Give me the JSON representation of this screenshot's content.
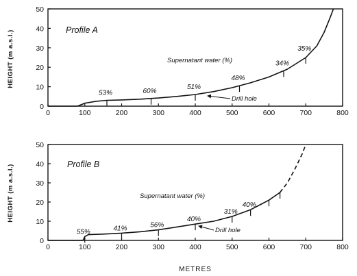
{
  "chart_data": [
    {
      "type": "line",
      "title": "Profile A",
      "xlabel": "",
      "ylabel": "HEIGHT (m a.s.l.)",
      "xlim": [
        0,
        800
      ],
      "ylim": [
        0,
        50
      ],
      "xticks": [
        "0",
        "100",
        "200",
        "300",
        "400",
        "500",
        "600",
        "700",
        "800"
      ],
      "yticks": [
        "0",
        "10",
        "20",
        "30",
        "40",
        "50"
      ],
      "series": [
        {
          "style": "solid",
          "x": [
            80,
            100,
            130,
            160,
            200,
            250,
            300,
            350,
            400,
            450,
            500,
            550,
            600,
            650,
            700,
            730,
            750,
            765,
            775
          ],
          "y": [
            0,
            1.5,
            2.5,
            3,
            3.2,
            3.6,
            4.2,
            5,
            6,
            7.5,
            9.5,
            12,
            15,
            19,
            25,
            31,
            38,
            45,
            50
          ]
        }
      ],
      "drill_holes": [
        {
          "x": 160,
          "label": "53%"
        },
        {
          "x": 280,
          "label": "60%"
        },
        {
          "x": 400,
          "label": "51%"
        },
        {
          "x": 520,
          "label": "48%"
        },
        {
          "x": 640,
          "label": "34%"
        },
        {
          "x": 700,
          "label": "35%"
        }
      ],
      "annotations": {
        "supernatant": "Supernatant water (%)",
        "drill": "Drill hole"
      }
    },
    {
      "type": "line",
      "title": "Profile B",
      "xlabel": "METRES",
      "ylabel": "HEIGHT (m a.s.l.)",
      "xlim": [
        0,
        800
      ],
      "ylim": [
        0,
        50
      ],
      "xticks": [
        "0",
        "100",
        "200",
        "300",
        "400",
        "500",
        "600",
        "700",
        "800"
      ],
      "yticks": [
        "0",
        "10",
        "20",
        "30",
        "40",
        "50"
      ],
      "series": [
        {
          "style": "solid",
          "x": [
            95,
            100,
            110,
            150,
            200,
            250,
            300,
            350,
            400,
            450,
            500,
            550,
            600,
            630
          ],
          "y": [
            0,
            2,
            3,
            3.3,
            3.8,
            4.5,
            5.5,
            7,
            8.5,
            10,
            12.5,
            16,
            21,
            25
          ]
        },
        {
          "style": "dashed",
          "x": [
            630,
            650,
            670,
            690,
            700
          ],
          "y": [
            25,
            30,
            37,
            45,
            50
          ]
        }
      ],
      "drill_holes": [
        {
          "x": 100,
          "label": "55%"
        },
        {
          "x": 200,
          "label": "41%"
        },
        {
          "x": 300,
          "label": "56%"
        },
        {
          "x": 400,
          "label": "40%"
        },
        {
          "x": 500,
          "label": "31%"
        },
        {
          "x": 550,
          "label": "40%"
        },
        {
          "x": 600,
          "label": ""
        },
        {
          "x": 630,
          "label": ""
        }
      ],
      "annotations": {
        "supernatant": "Supernatant water (%)",
        "drill": "Drill hole"
      }
    }
  ]
}
